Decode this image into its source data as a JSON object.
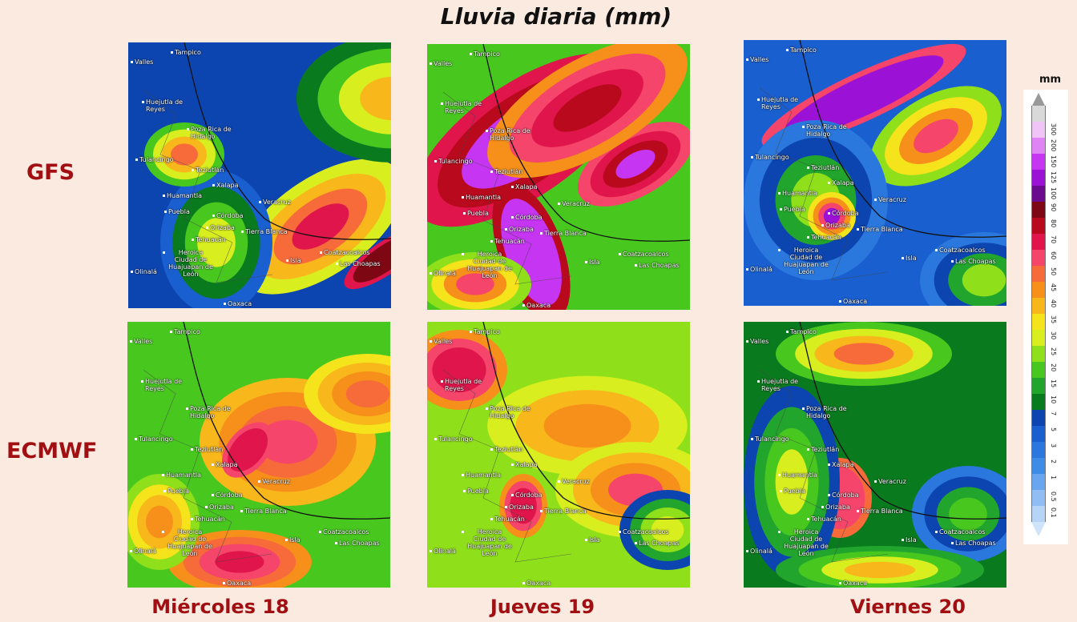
{
  "title": "Lluvia diaria (mm)",
  "rows": [
    "GFS",
    "ECMWF"
  ],
  "columns": [
    "Miércoles 18",
    "Jueves 19",
    "Viernes 20"
  ],
  "colorbar": {
    "unit": "mm",
    "ticks": [
      "0.1",
      "0.5",
      "1",
      "2",
      "3",
      "5",
      "7",
      "10",
      "15",
      "20",
      "25",
      "30",
      "35",
      "40",
      "45",
      "50",
      "60",
      "70",
      "80",
      "90",
      "100",
      "125",
      "150",
      "200",
      "300"
    ],
    "colors": [
      "#b5d4f7",
      "#8fbdf4",
      "#6aa6f0",
      "#3f8ce6",
      "#2a78dd",
      "#1a5fcf",
      "#0d45b0",
      "#0a7a1f",
      "#22a52c",
      "#48c81f",
      "#8fe01a",
      "#d8ee1f",
      "#f5e31c",
      "#f8b81b",
      "#f78f1b",
      "#f76b3a",
      "#f5456a",
      "#e0154b",
      "#b80a1c",
      "#7d0712",
      "#6b0a8f",
      "#9b12d6",
      "#c535f2",
      "#e084f5",
      "#f1c4f7",
      "#d9d9d9"
    ]
  },
  "cities": [
    "Tampico",
    "Valles",
    "Huejutla de Reyes",
    "Poza Rica de Hidalgo",
    "Tulancingo",
    "Teziutlán",
    "Xalapa",
    "Veracruz",
    "Huamantla",
    "Puebla",
    "Córdoba",
    "Orizaba",
    "Tehuacán",
    "Tierra Blanca",
    "Heroica Ciudad de Huajuapan de León",
    "Coatzacoalcos",
    "Las Choapas",
    "Isla",
    "Oaxaca",
    "Olinalá"
  ]
}
